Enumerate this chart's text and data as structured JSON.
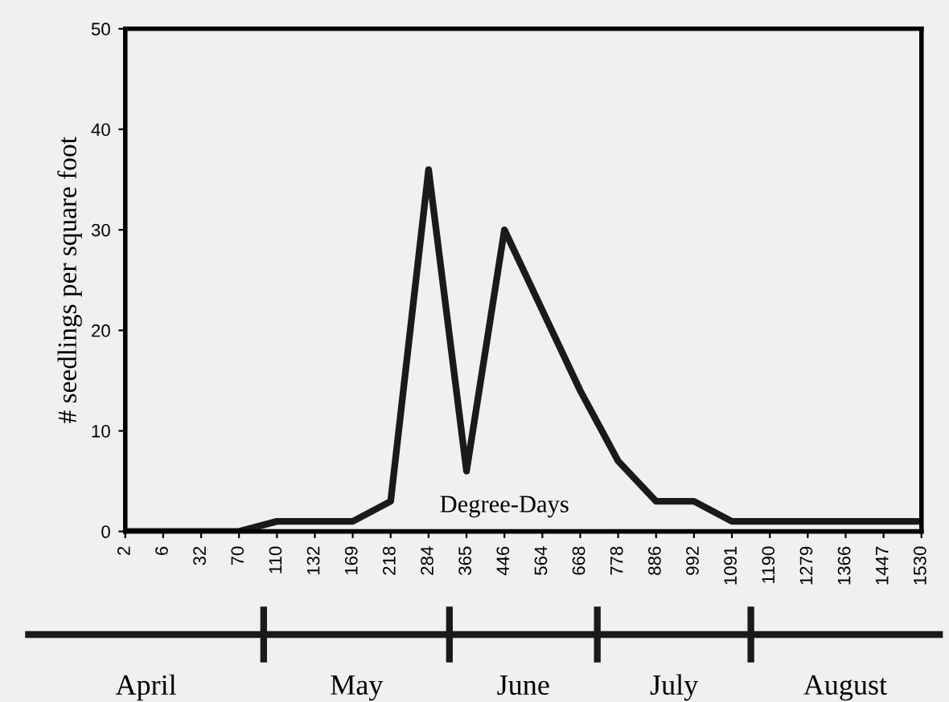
{
  "chart_data": {
    "type": "line",
    "xlabel": "Degree-Days",
    "ylabel": "# seedlings per square foot",
    "categories": [
      "2",
      "6",
      "32",
      "70",
      "110",
      "132",
      "169",
      "218",
      "284",
      "365",
      "446",
      "564",
      "668",
      "778",
      "886",
      "992",
      "1091",
      "1190",
      "1279",
      "1366",
      "1447",
      "1530"
    ],
    "series": [
      {
        "color": "#1a1a1a",
        "values": [
          0,
          0,
          0,
          0,
          1,
          1,
          1,
          3,
          36,
          6,
          30,
          22,
          14,
          7,
          3,
          3,
          1,
          1,
          1,
          1,
          1,
          1
        ]
      }
    ],
    "ylim": [
      0,
      50
    ],
    "yticks": [
      0,
      10,
      20,
      30,
      40,
      50
    ],
    "grid": false,
    "legend": false,
    "marker": "none",
    "line_style": "solid",
    "annotations": [
      "April",
      "May",
      "June",
      "July",
      "August"
    ]
  }
}
